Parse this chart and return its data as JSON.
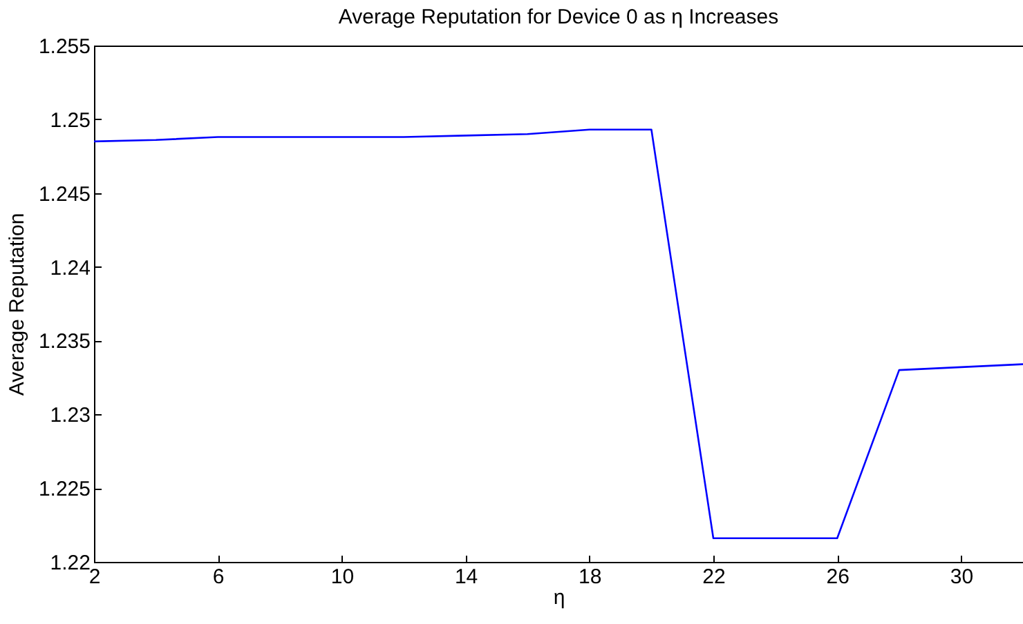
{
  "chart_data": {
    "type": "line",
    "title": "Average Reputation for Device 0 as η Increases",
    "xlabel": "η",
    "ylabel": "Average Reputation",
    "x": [
      2,
      4,
      6,
      8,
      10,
      12,
      14,
      16,
      18,
      20,
      22,
      24,
      26,
      28,
      30,
      32
    ],
    "series": [
      {
        "color": "#0000ff",
        "values": [
          1.2485,
          1.2486,
          1.2488,
          1.2488,
          1.2488,
          1.2488,
          1.2489,
          1.249,
          1.2493,
          1.2493,
          1.2216,
          1.2216,
          1.2216,
          1.233,
          1.2332,
          1.2334
        ]
      }
    ],
    "xlim": [
      2,
      32
    ],
    "xticks": [
      2,
      6,
      10,
      14,
      18,
      22,
      26,
      30
    ],
    "ylim": [
      1.22,
      1.255
    ],
    "yticks": [
      1.22,
      1.225,
      1.23,
      1.235,
      1.24,
      1.245,
      1.25,
      1.255
    ],
    "grid": false,
    "marker": "none",
    "line_style": "solid"
  }
}
